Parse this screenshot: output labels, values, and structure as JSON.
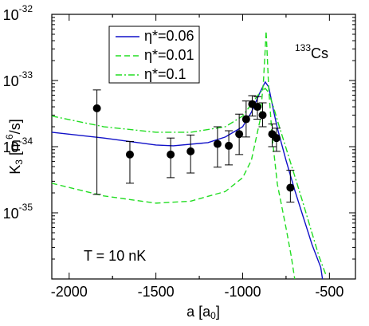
{
  "chart_data": {
    "type": "line",
    "xlabel": [
      "a [a",
      "0",
      "]"
    ],
    "ylabel": [
      "K",
      "3",
      " [m",
      "6",
      "/s]"
    ],
    "annotations": [
      {
        "parts": [
          "133",
          "Cs"
        ]
      },
      {
        "text": "T = 10 nK"
      }
    ],
    "xlim": [
      -2100,
      -350
    ],
    "xticks": [
      -2000,
      -1500,
      -1000,
      -500
    ],
    "ylim": [
      1e-36,
      1e-32
    ],
    "log_y": true,
    "yticks": [
      {
        "value": 1e-32,
        "label": "10",
        "exponent": "-32"
      },
      {
        "value": 1e-33,
        "label": "10",
        "exponent": "-33"
      },
      {
        "value": 1e-34,
        "label": "10",
        "exponent": "-34"
      },
      {
        "value": 1e-35,
        "label": "10",
        "exponent": "-35"
      }
    ],
    "series": [
      {
        "name": "η*=0.06",
        "color": "#1010c8",
        "dash": "solid",
        "x": [
          -2100,
          -1800,
          -1500,
          -1400,
          -1200,
          -1100,
          -1000,
          -950,
          -900,
          -870,
          -850,
          -820,
          -800,
          -750,
          -700,
          -650,
          -600,
          -550,
          -540
        ],
        "values": [
          1.65e-34,
          1.35e-34,
          1.06e-34,
          1.03e-34,
          1.15e-34,
          1.4e-34,
          2e-34,
          3.3e-34,
          6.6e-34,
          9.5e-34,
          8e-34,
          3.3e-34,
          1.9e-34,
          6.2e-35,
          2.2e-35,
          8.5e-36,
          3.3e-36,
          1.5e-36,
          1e-36
        ]
      },
      {
        "name": "η*=0.01",
        "color": "#22dd22",
        "dash": "dashed",
        "x": [
          -2100,
          -1800,
          -1500,
          -1300,
          -1100,
          -1000,
          -950,
          -900,
          -880,
          -870,
          -865,
          -860,
          -850,
          -830,
          -800,
          -750,
          -720,
          -700
        ],
        "values": [
          2.8e-35,
          1.8e-35,
          1.4e-35,
          1.5e-35,
          2.1e-35,
          3.4e-35,
          6.2e-35,
          2.5e-34,
          1e-33,
          3e-33,
          5.6e-33,
          3e-33,
          7.6e-34,
          1.4e-34,
          2.7e-35,
          5.9e-36,
          2.2e-36,
          1e-36
        ]
      },
      {
        "name": "η*=0.1",
        "color": "#22dd22",
        "dash": "dashdot",
        "x": [
          -2100,
          -1800,
          -1500,
          -1300,
          -1100,
          -1000,
          -950,
          -900,
          -870,
          -850,
          -820,
          -800,
          -750,
          -700,
          -650,
          -600,
          -560,
          -520
        ],
        "values": [
          2.9e-34,
          2e-34,
          1.65e-34,
          1.65e-34,
          2e-34,
          2.9e-34,
          4.4e-34,
          6.6e-34,
          7.6e-34,
          6.6e-34,
          3.8e-34,
          2.5e-34,
          9.5e-35,
          3.6e-35,
          1.35e-35,
          4.9e-36,
          2.2e-36,
          1.15e-36
        ]
      }
    ],
    "points": {
      "color": "#000000",
      "x": [
        -1840,
        -1650,
        -1415,
        -1300,
        -1145,
        -1080,
        -1020,
        -980,
        -945,
        -915,
        -885,
        -830,
        -805,
        -725
      ],
      "values": [
        3.8e-34,
        7.6e-35,
        7.6e-35,
        8.5e-35,
        1.1e-34,
        1.03e-34,
        1.55e-34,
        2.6e-34,
        4.4e-34,
        4e-34,
        3e-34,
        1.55e-34,
        1.35e-34,
        2.4e-35
      ],
      "lower": [
        1.9e-35,
        2.8e-35,
        3.4e-35,
        4e-35,
        4.9e-35,
        5.3e-35,
        7.6e-35,
        1.4e-34,
        2.9e-34,
        2.6e-34,
        2e-34,
        1e-34,
        8.5e-35,
        1.45e-35
      ],
      "upper": [
        7.2e-34,
        1.2e-34,
        1.35e-34,
        1.5e-34,
        2e-34,
        1.74e-34,
        3.1e-34,
        4.9e-34,
        5.9e-34,
        5.7e-34,
        4.6e-34,
        2.2e-34,
        1.9e-34,
        4.4e-35
      ]
    }
  }
}
